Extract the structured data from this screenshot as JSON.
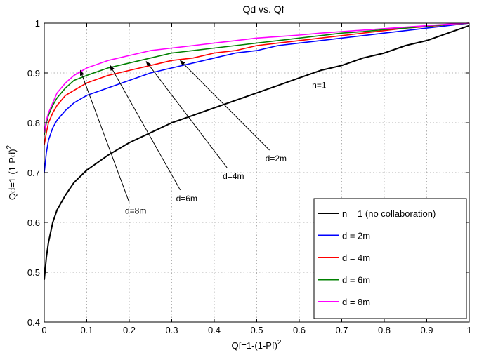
{
  "chart_data": {
    "type": "line",
    "title": "Qd vs. Qf",
    "xlabel": {
      "base": "Qf=1-(1-Pf)",
      "sup": "2"
    },
    "ylabel": {
      "base": "Qd=1-(1-Pd)",
      "sup": "2"
    },
    "xlim": [
      0,
      1
    ],
    "ylim": [
      0.4,
      1
    ],
    "grid": true,
    "xticks": [
      "0",
      "0.1",
      "0.2",
      "0.3",
      "0.4",
      "0.5",
      "0.6",
      "0.7",
      "0.8",
      "0.9",
      "1"
    ],
    "yticks": [
      "0.4",
      "0.5",
      "0.6",
      "0.7",
      "0.8",
      "0.9",
      "1"
    ],
    "legend_position": "bottom-right",
    "series": [
      {
        "name": "n = 1 (no collaboration)",
        "color": "#000000",
        "points": [
          [
            0,
            0.485
          ],
          [
            0.005,
            0.53
          ],
          [
            0.01,
            0.56
          ],
          [
            0.02,
            0.6
          ],
          [
            0.03,
            0.625
          ],
          [
            0.05,
            0.655
          ],
          [
            0.07,
            0.68
          ],
          [
            0.1,
            0.705
          ],
          [
            0.15,
            0.735
          ],
          [
            0.2,
            0.76
          ],
          [
            0.25,
            0.78
          ],
          [
            0.3,
            0.8
          ],
          [
            0.35,
            0.815
          ],
          [
            0.4,
            0.83
          ],
          [
            0.45,
            0.845
          ],
          [
            0.5,
            0.86
          ],
          [
            0.55,
            0.875
          ],
          [
            0.6,
            0.89
          ],
          [
            0.65,
            0.905
          ],
          [
            0.7,
            0.915
          ],
          [
            0.75,
            0.93
          ],
          [
            0.8,
            0.94
          ],
          [
            0.85,
            0.955
          ],
          [
            0.9,
            0.965
          ],
          [
            0.95,
            0.98
          ],
          [
            1.0,
            0.995
          ]
        ]
      },
      {
        "name": "d = 2m",
        "color": "#0000ff",
        "points": [
          [
            0,
            0.7
          ],
          [
            0.005,
            0.74
          ],
          [
            0.01,
            0.765
          ],
          [
            0.02,
            0.79
          ],
          [
            0.03,
            0.805
          ],
          [
            0.05,
            0.825
          ],
          [
            0.07,
            0.84
          ],
          [
            0.1,
            0.855
          ],
          [
            0.15,
            0.87
          ],
          [
            0.2,
            0.885
          ],
          [
            0.25,
            0.9
          ],
          [
            0.3,
            0.91
          ],
          [
            0.35,
            0.92
          ],
          [
            0.4,
            0.93
          ],
          [
            0.45,
            0.94
          ],
          [
            0.5,
            0.945
          ],
          [
            0.55,
            0.955
          ],
          [
            0.6,
            0.96
          ],
          [
            0.65,
            0.965
          ],
          [
            0.7,
            0.97
          ],
          [
            0.75,
            0.975
          ],
          [
            0.8,
            0.98
          ],
          [
            0.85,
            0.985
          ],
          [
            0.9,
            0.99
          ],
          [
            0.95,
            0.995
          ],
          [
            1.0,
            1.0
          ]
        ]
      },
      {
        "name": "d = 4m",
        "color": "#ff0000",
        "points": [
          [
            0,
            0.755
          ],
          [
            0.005,
            0.78
          ],
          [
            0.01,
            0.8
          ],
          [
            0.02,
            0.82
          ],
          [
            0.03,
            0.835
          ],
          [
            0.05,
            0.855
          ],
          [
            0.07,
            0.865
          ],
          [
            0.1,
            0.88
          ],
          [
            0.15,
            0.895
          ],
          [
            0.2,
            0.905
          ],
          [
            0.25,
            0.915
          ],
          [
            0.3,
            0.925
          ],
          [
            0.35,
            0.93
          ],
          [
            0.4,
            0.94
          ],
          [
            0.45,
            0.945
          ],
          [
            0.5,
            0.955
          ],
          [
            0.55,
            0.96
          ],
          [
            0.6,
            0.965
          ],
          [
            0.65,
            0.97
          ],
          [
            0.7,
            0.975
          ],
          [
            0.75,
            0.98
          ],
          [
            0.8,
            0.985
          ],
          [
            0.85,
            0.99
          ],
          [
            0.9,
            0.993
          ],
          [
            0.95,
            0.997
          ],
          [
            1.0,
            1.0
          ]
        ]
      },
      {
        "name": "d = 6m",
        "color": "#008000",
        "points": [
          [
            0,
            0.775
          ],
          [
            0.005,
            0.8
          ],
          [
            0.01,
            0.815
          ],
          [
            0.02,
            0.835
          ],
          [
            0.03,
            0.85
          ],
          [
            0.05,
            0.87
          ],
          [
            0.07,
            0.885
          ],
          [
            0.1,
            0.895
          ],
          [
            0.15,
            0.91
          ],
          [
            0.2,
            0.92
          ],
          [
            0.25,
            0.93
          ],
          [
            0.3,
            0.94
          ],
          [
            0.35,
            0.945
          ],
          [
            0.4,
            0.95
          ],
          [
            0.45,
            0.955
          ],
          [
            0.5,
            0.96
          ],
          [
            0.55,
            0.965
          ],
          [
            0.6,
            0.97
          ],
          [
            0.65,
            0.975
          ],
          [
            0.7,
            0.98
          ],
          [
            0.75,
            0.983
          ],
          [
            0.8,
            0.987
          ],
          [
            0.85,
            0.99
          ],
          [
            0.9,
            0.994
          ],
          [
            0.95,
            0.997
          ],
          [
            1.0,
            1.0
          ]
        ]
      },
      {
        "name": "d = 8m",
        "color": "#ff00ff",
        "points": [
          [
            0,
            0.78
          ],
          [
            0.005,
            0.805
          ],
          [
            0.01,
            0.82
          ],
          [
            0.02,
            0.84
          ],
          [
            0.03,
            0.86
          ],
          [
            0.05,
            0.88
          ],
          [
            0.07,
            0.895
          ],
          [
            0.1,
            0.91
          ],
          [
            0.15,
            0.925
          ],
          [
            0.2,
            0.935
          ],
          [
            0.25,
            0.945
          ],
          [
            0.3,
            0.95
          ],
          [
            0.35,
            0.955
          ],
          [
            0.4,
            0.96
          ],
          [
            0.45,
            0.965
          ],
          [
            0.5,
            0.97
          ],
          [
            0.55,
            0.973
          ],
          [
            0.6,
            0.976
          ],
          [
            0.65,
            0.98
          ],
          [
            0.7,
            0.983
          ],
          [
            0.75,
            0.986
          ],
          [
            0.8,
            0.989
          ],
          [
            0.85,
            0.992
          ],
          [
            0.9,
            0.995
          ],
          [
            0.95,
            0.998
          ],
          [
            1.0,
            1.0
          ]
        ]
      }
    ],
    "annotations": [
      {
        "text": "n=1",
        "x": 0.63,
        "y": 0.87
      },
      {
        "text": "d=2m",
        "text_at": [
          0.53,
          0.745
        ],
        "arrow_to": [
          0.32,
          0.925
        ]
      },
      {
        "text": "d=4m",
        "text_at": [
          0.43,
          0.71
        ],
        "arrow_to": [
          0.24,
          0.923
        ]
      },
      {
        "text": "d=6m",
        "text_at": [
          0.32,
          0.665
        ],
        "arrow_to": [
          0.155,
          0.915
        ]
      },
      {
        "text": "d=8m",
        "text_at": [
          0.2,
          0.64
        ],
        "arrow_to": [
          0.085,
          0.905
        ]
      }
    ]
  }
}
